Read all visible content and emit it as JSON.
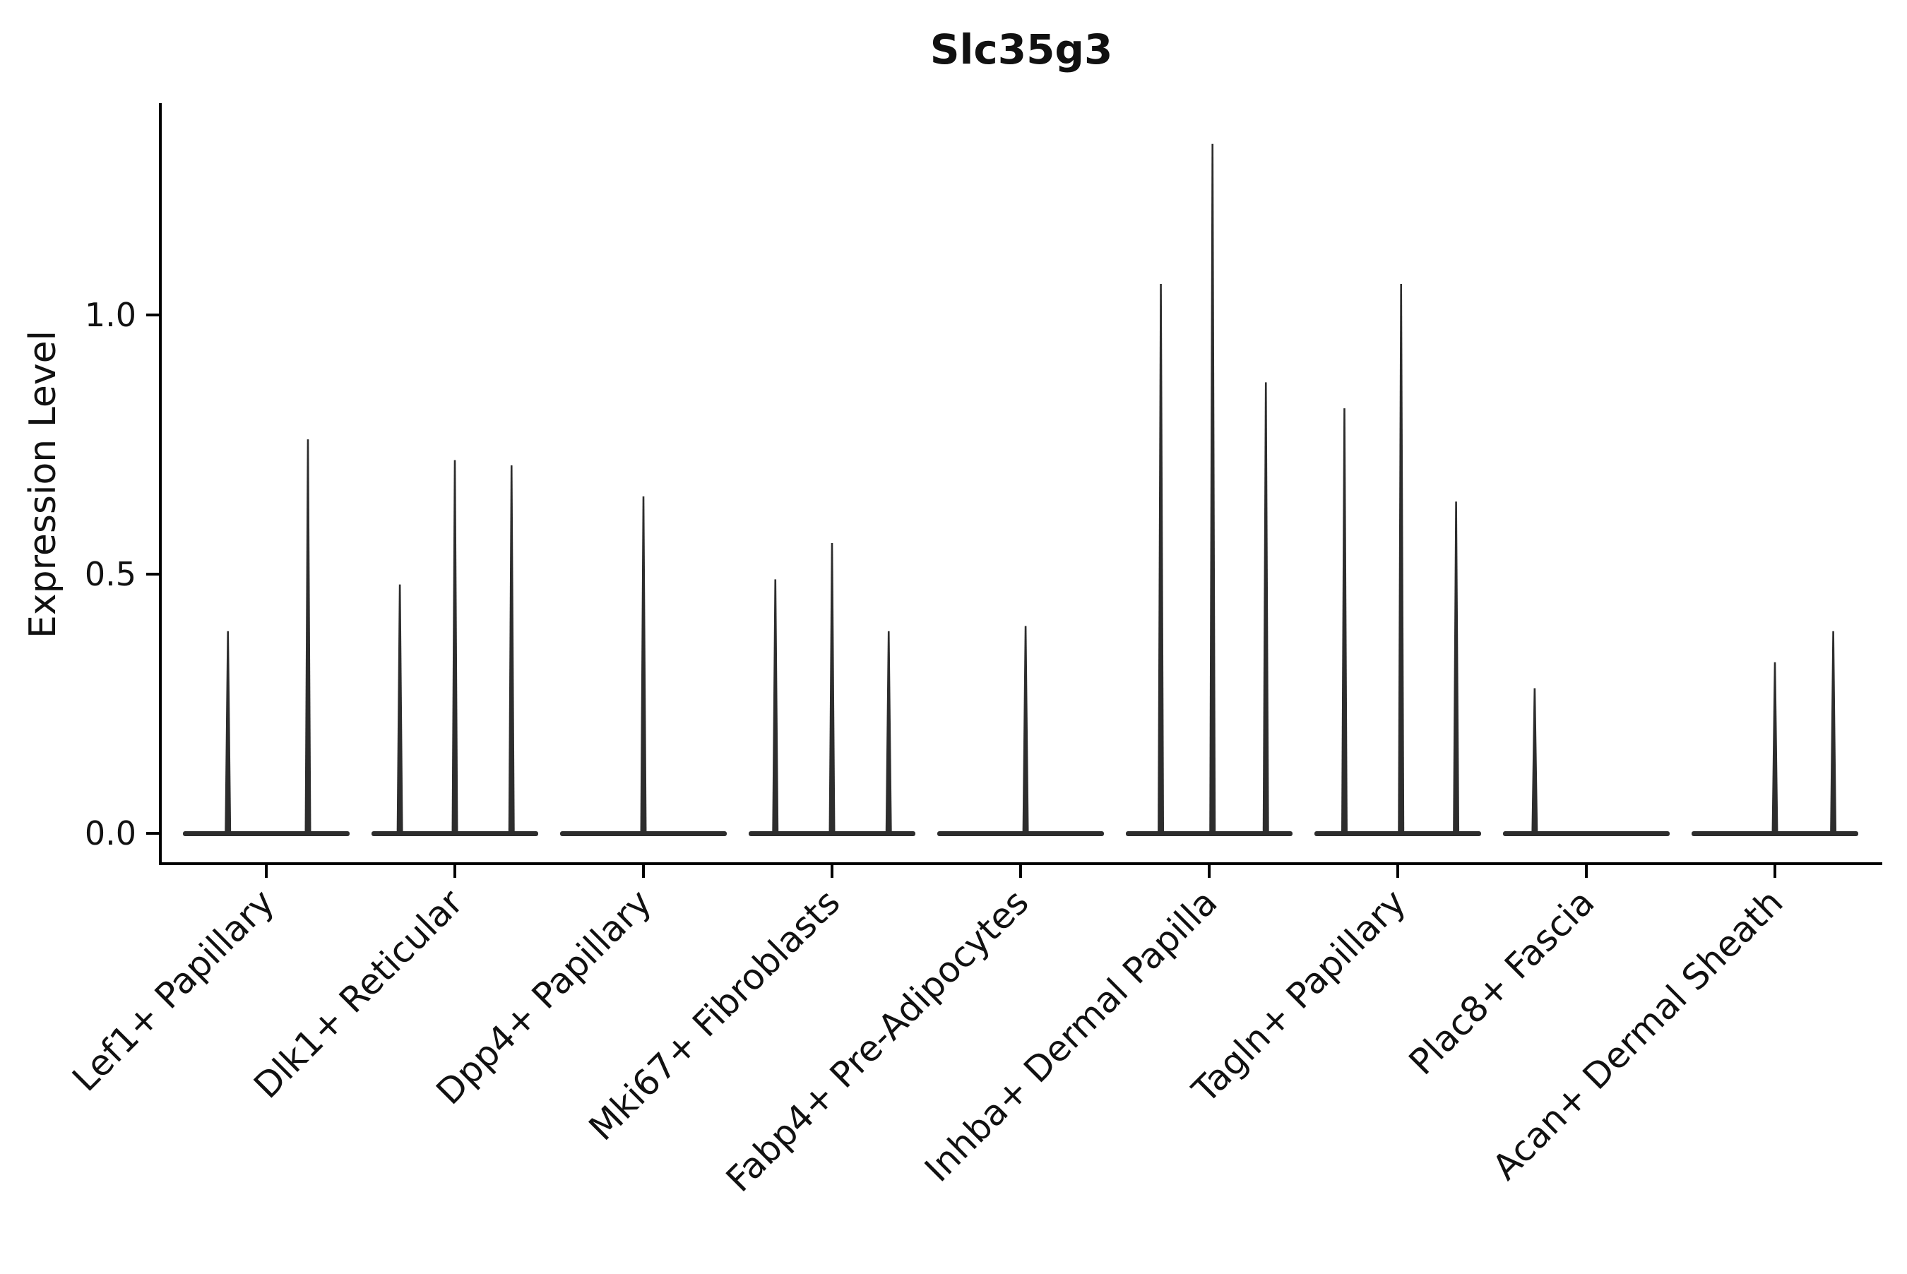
{
  "chart_data": {
    "type": "violin",
    "title": "Slc35g3",
    "ylabel": "Expression Level",
    "xlabel": "",
    "legend": "none",
    "grid": false,
    "ylim": [
      -0.06,
      1.41
    ],
    "ytick_labels": [
      "0.0",
      "0.5",
      "1.0"
    ],
    "ytick_values": [
      0.0,
      0.5,
      1.0
    ],
    "categories": [
      "Lef1+ Papillary",
      "Dlk1+ Reticular",
      "Dpp4+ Papillary",
      "Mki67+ Fibroblasts",
      "Fabp4+ Pre-Adipocytes",
      "Inhba+ Dermal Papilla",
      "Tagln+ Papillary",
      "Plac8+ Fascia",
      "Acan+ Dermal Sheath"
    ],
    "description": "Needle-like violin plot of single-cell expression; most cells at 0 (flat baseline per category) with narrow spikes at expressing-cell peaks.",
    "groups": [
      {
        "category": "Lef1+ Papillary",
        "baseline": 0.0,
        "spikes": [
          {
            "pos": 0.27,
            "peak": 0.39
          },
          {
            "pos": 0.75,
            "peak": 0.76
          }
        ]
      },
      {
        "category": "Dlk1+ Reticular",
        "baseline": 0.0,
        "spikes": [
          {
            "pos": 0.17,
            "peak": 0.48
          },
          {
            "pos": 0.5,
            "peak": 0.72
          },
          {
            "pos": 0.84,
            "peak": 0.71
          }
        ]
      },
      {
        "category": "Dpp4+ Papillary",
        "baseline": 0.0,
        "spikes": [
          {
            "pos": 0.5,
            "peak": 0.65
          }
        ]
      },
      {
        "category": "Mki67+ Fibroblasts",
        "baseline": 0.0,
        "spikes": [
          {
            "pos": 0.16,
            "peak": 0.49
          },
          {
            "pos": 0.5,
            "peak": 0.56
          },
          {
            "pos": 0.84,
            "peak": 0.39
          }
        ]
      },
      {
        "category": "Fabp4+ Pre-Adipocytes",
        "baseline": 0.0,
        "spikes": [
          {
            "pos": 0.53,
            "peak": 0.4
          }
        ]
      },
      {
        "category": "Inhba+ Dermal Papilla",
        "baseline": 0.0,
        "spikes": [
          {
            "pos": 0.21,
            "peak": 1.06
          },
          {
            "pos": 0.52,
            "peak": 1.33
          },
          {
            "pos": 0.84,
            "peak": 0.87
          }
        ]
      },
      {
        "category": "Tagln+ Papillary",
        "baseline": 0.0,
        "spikes": [
          {
            "pos": 0.18,
            "peak": 0.82
          },
          {
            "pos": 0.52,
            "peak": 1.06
          },
          {
            "pos": 0.85,
            "peak": 0.64
          }
        ]
      },
      {
        "category": "Plac8+ Fascia",
        "baseline": 0.0,
        "spikes": [
          {
            "pos": 0.19,
            "peak": 0.28
          }
        ]
      },
      {
        "category": "Acan+ Dermal Sheath",
        "baseline": 0.0,
        "spikes": [
          {
            "pos": 0.5,
            "peak": 0.33
          },
          {
            "pos": 0.85,
            "peak": 0.39
          }
        ]
      }
    ],
    "colors": {
      "spike": "#2d2d2d",
      "baseline": "#2d2d2d",
      "axis": "#000000",
      "text": "#111111",
      "background": "#ffffff"
    }
  }
}
